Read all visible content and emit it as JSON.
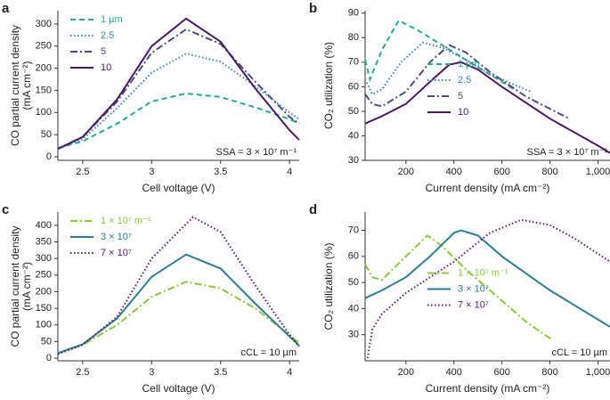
{
  "chart_data": [
    {
      "type": "line",
      "panel": "a",
      "x_label": "Cell voltage (V)",
      "y_label": [
        "CO partial current density",
        "(mA cm⁻²)"
      ],
      "annotation": "SSA = 3 × 10⁷ m⁻¹",
      "legend": "upper left",
      "xlim": [
        2.32,
        4.07
      ],
      "xticks": [
        2.5,
        3,
        3.5,
        4
      ],
      "ylim": [
        -8,
        330
      ],
      "yticks": [
        0,
        50,
        100,
        150,
        200,
        250,
        300
      ],
      "series": [
        {
          "name": "1 µm",
          "color": "#2aa88e",
          "dash": "dashed",
          "x": [
            2.32,
            2.5,
            2.75,
            3.0,
            3.25,
            3.5,
            3.75,
            4.0,
            4.07
          ],
          "values": [
            20,
            35,
            75,
            125,
            143,
            135,
            112,
            85,
            75
          ]
        },
        {
          "name": "2.5",
          "color": "#3a86b0",
          "dash": "dotted",
          "x": [
            2.32,
            2.5,
            2.75,
            3.0,
            3.25,
            3.5,
            3.75,
            4.0,
            4.07
          ],
          "values": [
            18,
            40,
            110,
            190,
            233,
            215,
            160,
            100,
            85
          ]
        },
        {
          "name": "5",
          "color": "#4a4e7e",
          "dash": "dashdot",
          "x": [
            2.32,
            2.5,
            2.75,
            3.0,
            3.25,
            3.5,
            3.75,
            4.0,
            4.07
          ],
          "values": [
            18,
            45,
            125,
            235,
            288,
            255,
            170,
            90,
            75
          ]
        },
        {
          "name": "10",
          "color": "#4b1a5e",
          "dash": "solid",
          "x": [
            2.32,
            2.5,
            2.75,
            3.0,
            3.25,
            3.5,
            3.75,
            4.0,
            4.07
          ],
          "values": [
            18,
            45,
            130,
            250,
            312,
            260,
            155,
            60,
            38
          ]
        }
      ]
    },
    {
      "type": "line",
      "panel": "b",
      "x_label": "Current density (mA cm⁻²)",
      "y_label": [
        "CO₂ utilization (%)"
      ],
      "annotation": "SSA = 3 × 10⁷ m⁻¹",
      "legend": "center left",
      "xlim": [
        30,
        1050
      ],
      "xticks": [
        200,
        400,
        600,
        800,
        {
          "value": 1000,
          "label": "1,000"
        }
      ],
      "ylim": [
        30,
        91
      ],
      "yticks": [
        30,
        40,
        50,
        60,
        70,
        80,
        90
      ],
      "series": [
        {
          "name": "1 µm",
          "color": "#2aa88e",
          "dash": "dashed",
          "x": [
            30,
            50,
            100,
            170,
            250,
            350,
            450,
            550,
            650
          ],
          "values": [
            71,
            63,
            75,
            87,
            83,
            77,
            71,
            65,
            59
          ]
        },
        {
          "name": "2.5",
          "color": "#3a86b0",
          "dash": "dotted",
          "x": [
            30,
            60,
            100,
            180,
            270,
            350,
            450,
            550,
            720
          ],
          "values": [
            63,
            57,
            59,
            70,
            78,
            76,
            71,
            65,
            58
          ]
        },
        {
          "name": "5",
          "color": "#4a4e7e",
          "dash": "dashdot",
          "x": [
            30,
            60,
            100,
            200,
            300,
            380,
            450,
            550,
            700,
            880
          ],
          "values": [
            57,
            53,
            52,
            58,
            70,
            77,
            74,
            66,
            56,
            47
          ]
        },
        {
          "name": "10",
          "color": "#4b1a5e",
          "dash": "solid",
          "x": [
            30,
            100,
            200,
            300,
            380,
            430,
            500,
            600,
            800,
            1000,
            1050
          ],
          "values": [
            45,
            48,
            53,
            62,
            69,
            70,
            67,
            60,
            47,
            36,
            33
          ]
        }
      ]
    },
    {
      "type": "line",
      "panel": "c",
      "x_label": "Cell voltage (V)",
      "y_label": [
        "CO partial current density",
        "(mA cm⁻²)"
      ],
      "annotation": "cCL = 10 µm",
      "legend": "upper left",
      "xlim": [
        2.32,
        4.07
      ],
      "xticks": [
        2.5,
        3,
        3.5,
        4
      ],
      "ylim": [
        -8,
        440
      ],
      "yticks": [
        0,
        50,
        100,
        150,
        200,
        250,
        300,
        350,
        400
      ],
      "series": [
        {
          "name": "1 × 10⁷ m⁻¹",
          "color": "#8cc63f",
          "dash": "dashdot",
          "x": [
            2.32,
            2.5,
            2.75,
            3.0,
            3.25,
            3.5,
            3.75,
            4.0,
            4.07
          ],
          "values": [
            15,
            40,
            100,
            185,
            230,
            210,
            150,
            70,
            45
          ]
        },
        {
          "name": "3 × 10⁷",
          "color": "#2e7d8f",
          "dash": "solid",
          "x": [
            2.32,
            2.5,
            2.75,
            3.0,
            3.25,
            3.5,
            3.75,
            4.0,
            4.07
          ],
          "values": [
            15,
            42,
            120,
            245,
            312,
            270,
            165,
            65,
            38
          ]
        },
        {
          "name": "7 × 10⁷",
          "color": "#5a1a6e",
          "dash": "dotted",
          "x": [
            2.32,
            2.5,
            2.75,
            3.0,
            3.3,
            3.5,
            3.75,
            4.0,
            4.07
          ],
          "values": [
            12,
            40,
            125,
            300,
            425,
            380,
            220,
            70,
            35
          ]
        }
      ]
    },
    {
      "type": "line",
      "panel": "d",
      "x_label": "Current density (mA cm⁻²)",
      "y_label": [
        "CO₂ utilization (%)"
      ],
      "annotation": "cCL = 10 µm",
      "legend": "center left",
      "xlim": [
        30,
        1050
      ],
      "xticks": [
        200,
        400,
        600,
        800,
        {
          "value": 1000,
          "label": "1,000"
        }
      ],
      "ylim": [
        20,
        77
      ],
      "yticks": [
        30,
        40,
        50,
        60,
        70
      ],
      "series": [
        {
          "name": "1 × 10⁷ m⁻¹",
          "color": "#8cc63f",
          "dash": "dashdot",
          "x": [
            30,
            60,
            100,
            200,
            290,
            350,
            450,
            600,
            700,
            810
          ],
          "values": [
            57,
            52,
            51,
            60,
            68,
            64,
            55,
            43,
            35,
            28
          ]
        },
        {
          "name": "3 × 10⁷",
          "color": "#2e7d8f",
          "dash": "solid",
          "x": [
            30,
            100,
            200,
            300,
            400,
            430,
            500,
            600,
            800,
            1050
          ],
          "values": [
            44,
            47,
            52,
            60,
            69,
            70,
            68,
            60,
            47,
            33
          ]
        },
        {
          "name": "7 × 10⁷",
          "color": "#5a1a6e",
          "dash": "dotted",
          "x": [
            40,
            60,
            100,
            200,
            400,
            550,
            680,
            800,
            900,
            1050
          ],
          "values": [
            21,
            32,
            38,
            46,
            58,
            69,
            74,
            72,
            67,
            58
          ]
        }
      ]
    }
  ]
}
